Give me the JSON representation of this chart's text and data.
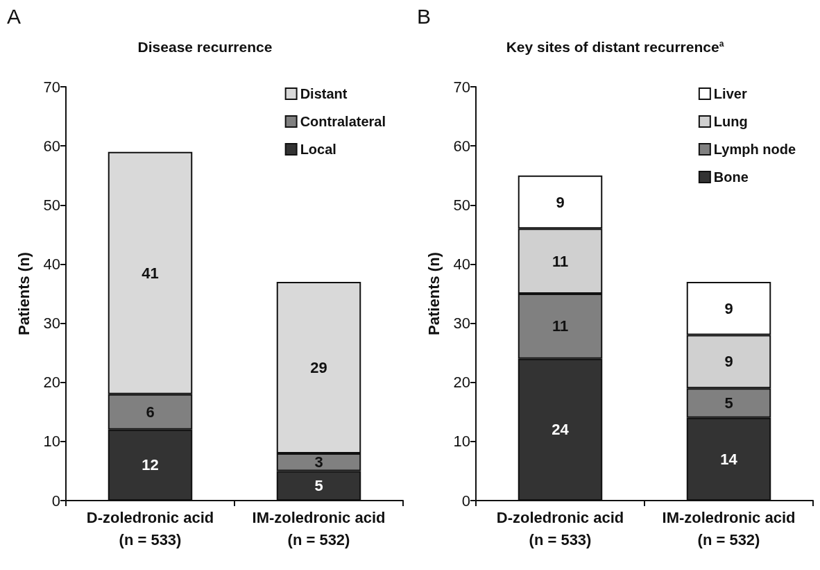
{
  "chart_data": [
    {
      "type": "bar",
      "title": "Disease recurrence",
      "ylabel": "Patients (n)",
      "annotations": [
        "A"
      ],
      "categories": [
        "D-zoledronic acid\n(n = 533)",
        "IM-zoledronic acid\n(n = 532)"
      ],
      "stacked": true,
      "data_labels": true,
      "legend": "top right",
      "grid": false,
      "ylim": [
        0,
        70
      ],
      "yticks": [
        0,
        10,
        20,
        30,
        40,
        50,
        60,
        70
      ],
      "series": [
        {
          "name": "Local",
          "color": "#333333",
          "values": [
            12,
            5
          ]
        },
        {
          "name": "Contralateral",
          "color": "#808080",
          "values": [
            6,
            3
          ]
        },
        {
          "name": "Distant",
          "color": "#d9d9d9",
          "values": [
            41,
            29
          ]
        }
      ]
    },
    {
      "type": "bar",
      "title": "Key sites of distant recurrence$^{a}$",
      "ylabel": "Patients (n)",
      "annotations": [
        "B"
      ],
      "categories": [
        "D-zoledronic acid\n(n = 533)",
        "IM-zoledronic acid\n(n = 532)"
      ],
      "stacked": true,
      "data_labels": true,
      "legend": "top right",
      "grid": false,
      "ylim": [
        0,
        70
      ],
      "yticks": [
        0,
        10,
        20,
        30,
        40,
        50,
        60,
        70
      ],
      "series": [
        {
          "name": "Bone",
          "color": "#333333",
          "values": [
            24,
            14
          ]
        },
        {
          "name": "Lymph node",
          "color": "#808080",
          "values": [
            11,
            5
          ]
        },
        {
          "name": "Lung",
          "color": "#d0d0d0",
          "values": [
            11,
            9
          ]
        },
        {
          "name": "Liver",
          "color": "#ffffff",
          "values": [
            9,
            9
          ]
        }
      ]
    }
  ]
}
